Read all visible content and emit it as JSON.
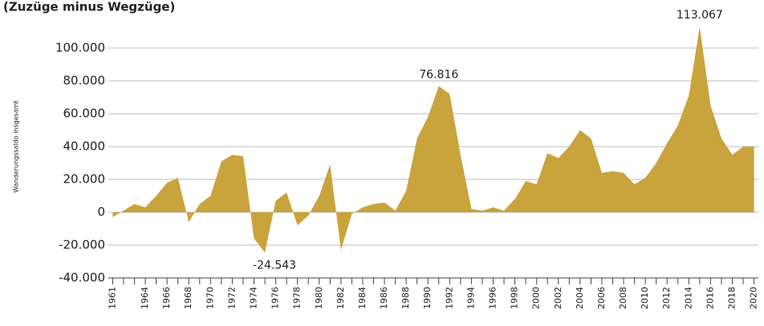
{
  "chart_data": {
    "type": "area",
    "title": "(Zuzüge minus Wegzüge)",
    "y_label": "Wanderungssaldo insgesamt",
    "color": "#c9a33c",
    "grid": true,
    "x": [
      1961,
      1962,
      1963,
      1964,
      1965,
      1966,
      1967,
      1968,
      1969,
      1970,
      1971,
      1972,
      1973,
      1974,
      1975,
      1976,
      1977,
      1978,
      1979,
      1980,
      1981,
      1982,
      1983,
      1984,
      1985,
      1986,
      1987,
      1988,
      1989,
      1990,
      1991,
      1992,
      1993,
      1994,
      1995,
      1996,
      1997,
      1998,
      1999,
      2000,
      2001,
      2002,
      2003,
      2004,
      2005,
      2006,
      2007,
      2008,
      2009,
      2010,
      2011,
      2012,
      2013,
      2014,
      2015,
      2016,
      2017,
      2018,
      2019,
      2020
    ],
    "values": [
      -3000,
      1000,
      5000,
      3000,
      10000,
      18000,
      21000,
      -6000,
      5000,
      10000,
      31000,
      35000,
      34000,
      -16000,
      -24543,
      7000,
      12000,
      -8000,
      -2000,
      10000,
      29000,
      -23000,
      -1000,
      3000,
      5000,
      6000,
      1000,
      13000,
      45000,
      58000,
      76816,
      72000,
      35000,
      2000,
      1000,
      3000,
      1000,
      8000,
      19000,
      17000,
      36000,
      33000,
      40000,
      50000,
      45000,
      24000,
      25000,
      24000,
      17000,
      21000,
      30000,
      42000,
      53000,
      71000,
      113067,
      65000,
      45000,
      35000,
      40000,
      40000
    ],
    "value_labels": [
      null,
      null,
      null,
      null,
      null,
      null,
      null,
      null,
      null,
      null,
      null,
      null,
      null,
      null,
      "-24.543",
      null,
      null,
      null,
      null,
      null,
      null,
      null,
      null,
      null,
      null,
      null,
      null,
      null,
      null,
      null,
      "76.816",
      null,
      null,
      null,
      null,
      null,
      null,
      null,
      null,
      null,
      null,
      null,
      null,
      null,
      null,
      null,
      null,
      null,
      null,
      null,
      null,
      null,
      null,
      null,
      "113.067",
      null,
      null,
      null,
      null,
      null
    ],
    "xlim": [
      1960.6,
      2020.4
    ],
    "xticks": [
      1961,
      1964,
      1966,
      1968,
      1970,
      1972,
      1974,
      1976,
      1978,
      1980,
      1982,
      1984,
      1986,
      1988,
      1990,
      1992,
      1994,
      1996,
      1998,
      2000,
      2002,
      2004,
      2006,
      2008,
      2010,
      2012,
      2014,
      2016,
      2018,
      2020
    ],
    "ylim": [
      -40000,
      120000
    ],
    "yticks": [
      {
        "value": -40000,
        "label": "-40.000"
      },
      {
        "value": -20000,
        "label": "-20.000"
      },
      0,
      {
        "value": 20000,
        "label": "20.000"
      },
      {
        "value": 40000,
        "label": "40.000"
      },
      {
        "value": 60000,
        "label": "60.000"
      },
      {
        "value": 80000,
        "label": "80.000"
      },
      {
        "value": 100000,
        "label": "100.000"
      }
    ]
  }
}
